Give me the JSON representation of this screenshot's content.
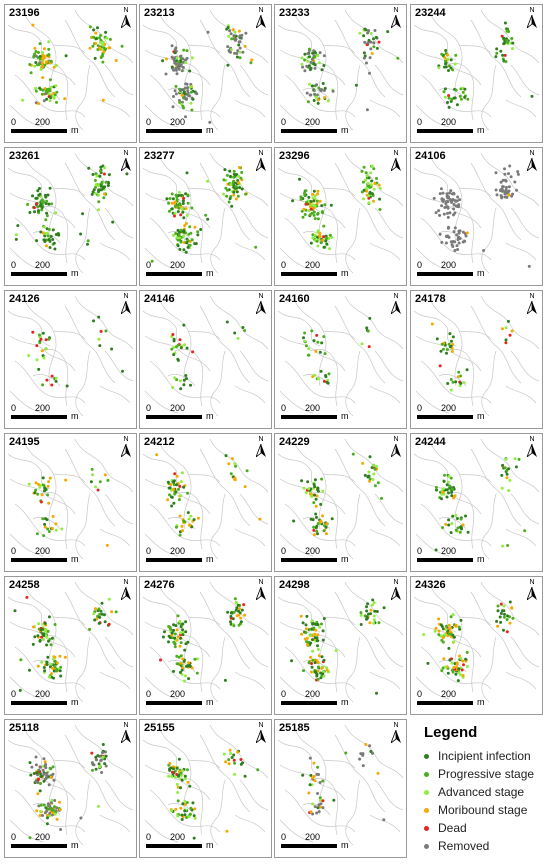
{
  "panels": [
    {
      "id": "23196",
      "mix": [
        0.12,
        0.42,
        0.12,
        0.28,
        0.01,
        0.05
      ],
      "n": 150
    },
    {
      "id": "23213",
      "mix": [
        0.1,
        0.15,
        0.1,
        0.05,
        0.02,
        0.58
      ],
      "n": 150
    },
    {
      "id": "23233",
      "mix": [
        0.22,
        0.2,
        0.08,
        0.03,
        0.03,
        0.44
      ],
      "n": 110
    },
    {
      "id": "23244",
      "mix": [
        0.45,
        0.33,
        0.15,
        0.04,
        0.03,
        0.0
      ],
      "n": 80
    },
    {
      "id": "23261",
      "mix": [
        0.55,
        0.3,
        0.1,
        0.03,
        0.02,
        0.0
      ],
      "n": 130
    },
    {
      "id": "23277",
      "mix": [
        0.4,
        0.35,
        0.1,
        0.13,
        0.02,
        0.0
      ],
      "n": 170
    },
    {
      "id": "23296",
      "mix": [
        0.25,
        0.38,
        0.2,
        0.15,
        0.02,
        0.0
      ],
      "n": 150
    },
    {
      "id": "24106",
      "mix": [
        0.02,
        0.03,
        0.01,
        0.02,
        0.02,
        0.9
      ],
      "n": 130
    },
    {
      "id": "24126",
      "mix": [
        0.4,
        0.22,
        0.18,
        0.08,
        0.12,
        0.0
      ],
      "n": 35
    },
    {
      "id": "24146",
      "mix": [
        0.42,
        0.28,
        0.18,
        0.06,
        0.06,
        0.0
      ],
      "n": 35
    },
    {
      "id": "24160",
      "mix": [
        0.3,
        0.3,
        0.2,
        0.1,
        0.1,
        0.0
      ],
      "n": 35
    },
    {
      "id": "24178",
      "mix": [
        0.3,
        0.2,
        0.2,
        0.2,
        0.1,
        0.0
      ],
      "n": 40
    },
    {
      "id": "24195",
      "mix": [
        0.2,
        0.2,
        0.2,
        0.35,
        0.05,
        0.0
      ],
      "n": 50
    },
    {
      "id": "24212",
      "mix": [
        0.35,
        0.2,
        0.15,
        0.28,
        0.02,
        0.0
      ],
      "n": 75
    },
    {
      "id": "24229",
      "mix": [
        0.4,
        0.2,
        0.2,
        0.18,
        0.02,
        0.0
      ],
      "n": 80
    },
    {
      "id": "24244",
      "mix": [
        0.42,
        0.25,
        0.15,
        0.16,
        0.02,
        0.0
      ],
      "n": 80
    },
    {
      "id": "24258",
      "mix": [
        0.4,
        0.2,
        0.15,
        0.19,
        0.06,
        0.0
      ],
      "n": 110
    },
    {
      "id": "24276",
      "mix": [
        0.45,
        0.22,
        0.15,
        0.14,
        0.04,
        0.0
      ],
      "n": 120
    },
    {
      "id": "24298",
      "mix": [
        0.45,
        0.2,
        0.15,
        0.17,
        0.03,
        0.0
      ],
      "n": 130
    },
    {
      "id": "24326",
      "mix": [
        0.35,
        0.2,
        0.15,
        0.25,
        0.05,
        0.0
      ],
      "n": 120
    },
    {
      "id": "25118",
      "mix": [
        0.2,
        0.1,
        0.1,
        0.15,
        0.05,
        0.4
      ],
      "n": 140
    },
    {
      "id": "25155",
      "mix": [
        0.4,
        0.2,
        0.15,
        0.2,
        0.05,
        0.0
      ],
      "n": 90
    },
    {
      "id": "25185",
      "mix": [
        0.1,
        0.05,
        0.05,
        0.2,
        0.05,
        0.55
      ],
      "n": 45
    }
  ],
  "scale": {
    "zero": "0",
    "mid": "200",
    "unit": "m"
  },
  "north_label": "N",
  "legend": {
    "title": "Legend",
    "items": [
      {
        "label": "Incipient infection",
        "color": "#2e7d1f"
      },
      {
        "label": "Progressive stage",
        "color": "#4cae1e"
      },
      {
        "label": "Advanced stage",
        "color": "#90ee40"
      },
      {
        "label": "Moribound stage",
        "color": "#f5a800"
      },
      {
        "label": "Dead",
        "color": "#e8231f"
      },
      {
        "label": "Removed",
        "color": "#7a7a7a"
      }
    ]
  }
}
